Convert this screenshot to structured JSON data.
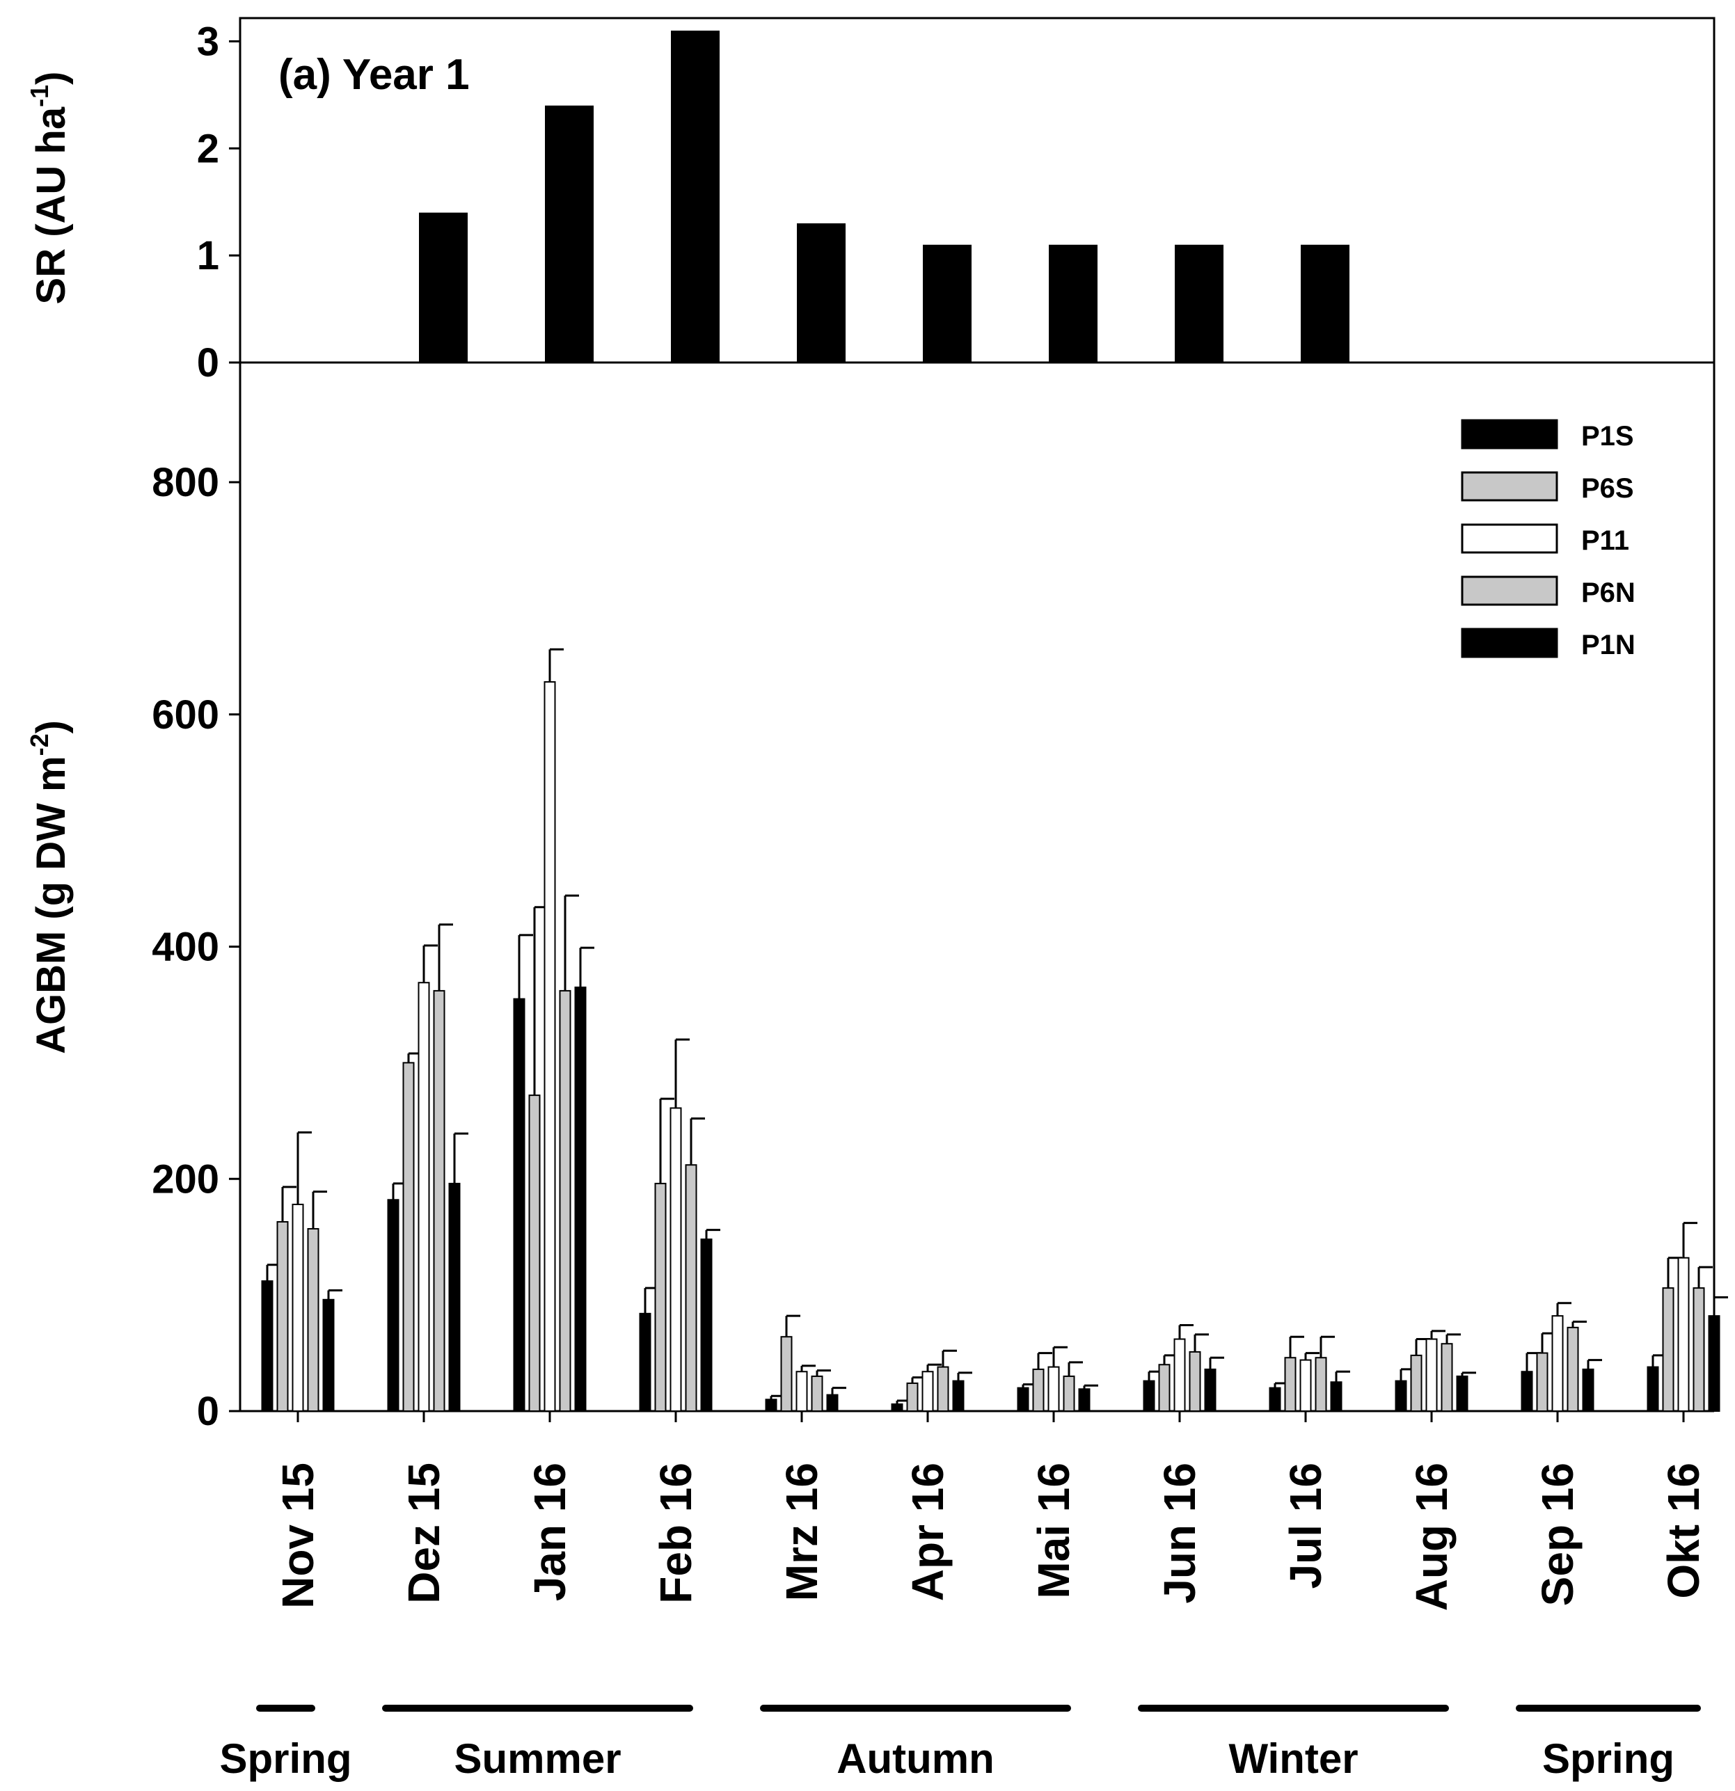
{
  "colors": {
    "P1S": "#000000",
    "P6S": "#c8c8c8",
    "P11": "#ffffff",
    "P6N": "#c8c8c8",
    "P1N": "#000000",
    "line": "#000000"
  },
  "chart_data": [
    {
      "type": "bar",
      "panel_label": "(a) Year 1",
      "ylabel": "SR (AU ha",
      "ylabel_sup": "-1",
      "ylabel_end": ")",
      "ylim": [
        0,
        3.1
      ],
      "yticks": [
        0,
        1,
        2,
        3
      ],
      "categories": [
        "Nov 15",
        "Dez 15",
        "Jan 16",
        "Feb 16",
        "Mrz 16",
        "Apr 16",
        "Mai 16",
        "Jun 16",
        "Jul 16",
        "Aug 16",
        "Sep 16",
        "Okt 16"
      ],
      "values": [
        0,
        1.4,
        2.4,
        3.1,
        1.3,
        1.1,
        1.1,
        1.1,
        1.1,
        0,
        0,
        0
      ]
    },
    {
      "type": "bar",
      "ylabel": "AGBM (g DW m",
      "ylabel_sup": "-2",
      "ylabel_end": ")",
      "ylim": [
        0,
        900
      ],
      "yticks": [
        0,
        200,
        400,
        600,
        800
      ],
      "categories": [
        "Nov 15",
        "Dez 15",
        "Jan 16",
        "Feb 16",
        "Mrz 16",
        "Apr 16",
        "Mai 16",
        "Jun 16",
        "Jul 16",
        "Aug 16",
        "Sep 16",
        "Okt 16"
      ],
      "series": [
        {
          "name": "P1S",
          "values": [
            112,
            182,
            355,
            84,
            10,
            6,
            20,
            26,
            20,
            26,
            34,
            38
          ],
          "errors": [
            14,
            14,
            55,
            22,
            3,
            3,
            3,
            8,
            4,
            10,
            16,
            10
          ]
        },
        {
          "name": "P6S",
          "values": [
            163,
            300,
            272,
            196,
            64,
            24,
            36,
            40,
            46,
            48,
            50,
            106
          ],
          "errors": [
            30,
            8,
            162,
            73,
            18,
            5,
            14,
            8,
            18,
            14,
            17,
            26
          ]
        },
        {
          "name": "P11",
          "values": [
            178,
            369,
            628,
            261,
            34,
            34,
            38,
            62,
            44,
            62,
            82,
            132
          ],
          "errors": [
            62,
            32,
            28,
            59,
            5,
            6,
            17,
            12,
            6,
            7,
            11,
            30
          ]
        },
        {
          "name": "P6N",
          "values": [
            157,
            362,
            362,
            212,
            30,
            38,
            30,
            51,
            46,
            58,
            72,
            106
          ],
          "errors": [
            32,
            57,
            82,
            40,
            5,
            14,
            12,
            15,
            18,
            8,
            5,
            18
          ]
        },
        {
          "name": "P1N",
          "values": [
            96,
            196,
            365,
            148,
            14,
            26,
            19,
            36,
            25,
            30,
            36,
            82
          ],
          "errors": [
            8,
            43,
            34,
            8,
            6,
            7,
            3,
            10,
            9,
            3,
            8,
            16
          ]
        }
      ],
      "seasons": [
        {
          "label": "Spring",
          "from": 0,
          "to": 0
        },
        {
          "label": "Summer",
          "from": 1,
          "to": 3
        },
        {
          "label": "Autumn",
          "from": 4,
          "to": 6
        },
        {
          "label": "Winter",
          "from": 7,
          "to": 9
        },
        {
          "label": "Spring",
          "from": 10,
          "to": 11
        }
      ]
    }
  ]
}
